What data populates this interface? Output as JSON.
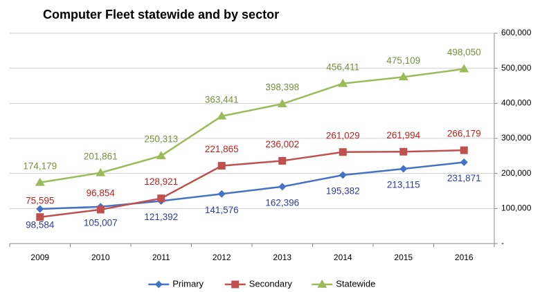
{
  "chart_data": {
    "type": "line",
    "title": "Computer Fleet statewide and by sector",
    "categories": [
      "2009",
      "2010",
      "2011",
      "2012",
      "2013",
      "2014",
      "2015",
      "2016"
    ],
    "series": [
      {
        "name": "Primary",
        "color": "#4472c4",
        "label_color": "#2e3d9e",
        "values": [
          98584,
          105007,
          121392,
          141576,
          162396,
          195382,
          213115,
          231871
        ],
        "value_labels": [
          "98,584",
          "105,007",
          "121,392",
          "141,576",
          "162,396",
          "195,382",
          "213,115",
          "231,871"
        ]
      },
      {
        "name": "Secondary",
        "color": "#c0504d",
        "label_color": "#c0201d",
        "values": [
          75595,
          96854,
          128921,
          221865,
          236002,
          261029,
          261994,
          266179
        ],
        "value_labels": [
          "75,595",
          "96,854",
          "128,921",
          "221,865",
          "236,002",
          "261,029",
          "261,994",
          "266,179"
        ]
      },
      {
        "name": "Statewide",
        "color": "#9bbb59",
        "label_color": "#76923c",
        "values": [
          174179,
          201861,
          250313,
          363441,
          398398,
          456411,
          475109,
          498050
        ],
        "value_labels": [
          "174,179",
          "201,861",
          "250,313",
          "363,441",
          "398,398",
          "456,411",
          "475,109",
          "498,050"
        ]
      }
    ],
    "ylim": [
      0,
      600000
    ],
    "yticks": [
      {
        "value": 0,
        "label": "-"
      },
      {
        "value": 100000,
        "label": "100,000"
      },
      {
        "value": 200000,
        "label": "200,000"
      },
      {
        "value": 300000,
        "label": "300,000"
      },
      {
        "value": 400000,
        "label": "400,000"
      },
      {
        "value": 500000,
        "label": "500,000"
      },
      {
        "value": 600000,
        "label": "600,000"
      }
    ],
    "grid": true,
    "y_axis_side": "right",
    "legend": "bottom"
  }
}
